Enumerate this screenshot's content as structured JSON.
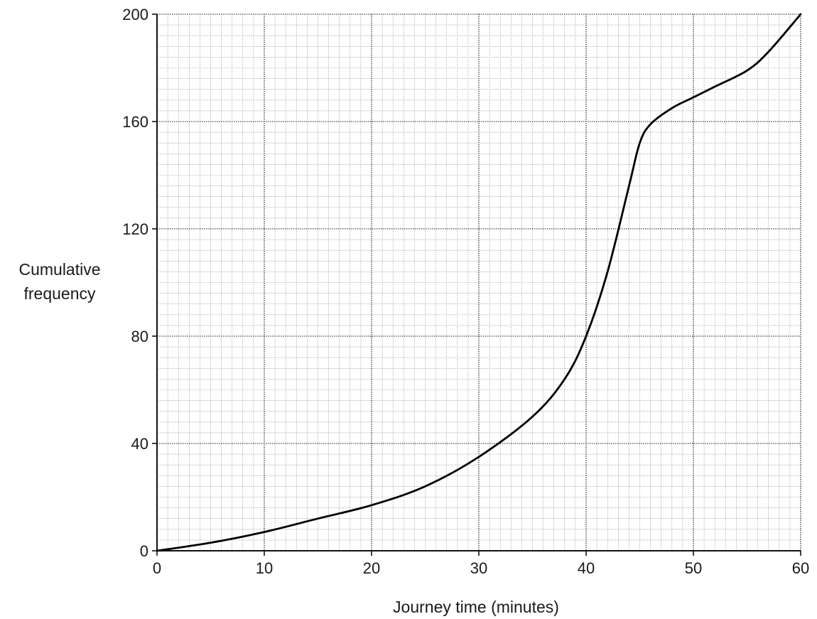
{
  "chart_data": {
    "type": "line",
    "title": "",
    "xlabel": "Journey time (minutes)",
    "ylabel_line1": "Cumulative",
    "ylabel_line2": "frequency",
    "xlim": [
      0,
      60
    ],
    "ylim": [
      0,
      200
    ],
    "x_ticks": [
      0,
      10,
      20,
      30,
      40,
      50,
      60
    ],
    "y_ticks": [
      0,
      40,
      80,
      120,
      160,
      200
    ],
    "x_tick_labels": [
      "0",
      "10",
      "20",
      "30",
      "40",
      "50",
      "60"
    ],
    "y_tick_labels": [
      "0",
      "40",
      "80",
      "120",
      "160",
      "200"
    ],
    "grid": true,
    "x_minor_step": 1,
    "y_minor_step": 4,
    "line_color": "#000000",
    "series": [
      {
        "x": [
          0,
          5,
          10,
          15,
          20,
          25,
          30,
          35,
          38,
          40,
          42,
          44,
          45,
          46,
          48,
          50,
          52,
          55,
          57,
          60
        ],
        "y": [
          0,
          3,
          7,
          12,
          17,
          24,
          35,
          50,
          64,
          80,
          104,
          136,
          152,
          159,
          165,
          169,
          173,
          179,
          186,
          200
        ]
      }
    ]
  }
}
